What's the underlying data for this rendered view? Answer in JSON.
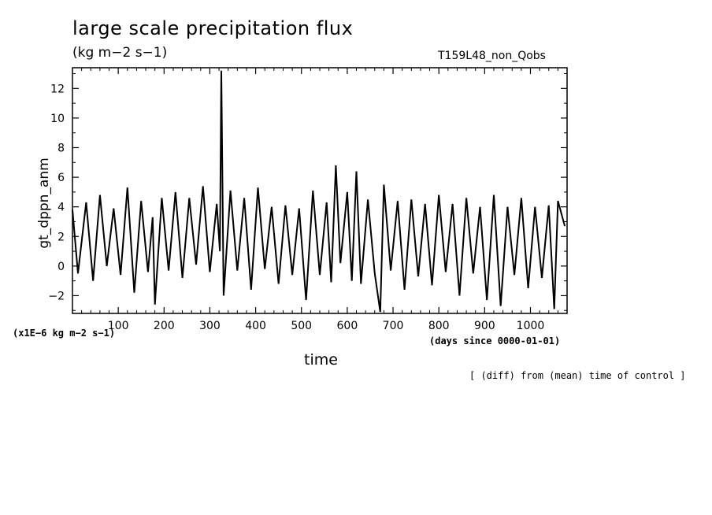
{
  "header": {
    "title": "large scale precipitation flux",
    "units": "(kg m−2 s−1)",
    "run": "T159L48_non_Qobs"
  },
  "axes": {
    "ylabel": "gt_dppn_anm",
    "xlabel": "time",
    "y_scale_note": "(x1E−6 kg m−2 s−1)",
    "x_units": "(days since 0000-01-01)"
  },
  "footer": {
    "note": "[ (diff) from (mean) time of control ]"
  },
  "chart_data": {
    "type": "line",
    "xlim": [
      0,
      1080
    ],
    "ylim": [
      -3.2,
      13.4
    ],
    "xticks": [
      100,
      200,
      300,
      400,
      500,
      600,
      700,
      800,
      900,
      1000
    ],
    "xtick_labels": [
      "100",
      "200",
      "300",
      "400",
      "500",
      "600",
      "700",
      "800",
      "900",
      "1000"
    ],
    "yticks": [
      -2,
      0,
      2,
      4,
      6,
      8,
      10,
      12
    ],
    "ytick_labels": [
      "−2",
      "0",
      "2",
      "4",
      "6",
      "8",
      "10",
      "12"
    ],
    "line_color": "#000000",
    "grid": false,
    "series": [
      {
        "x": [
          0,
          12,
          30,
          45,
          60,
          75,
          90,
          105,
          120,
          135,
          150,
          165,
          175,
          180,
          195,
          210,
          225,
          240,
          255,
          270,
          285,
          300,
          315,
          322,
          325,
          330,
          345,
          360,
          375,
          390,
          405,
          420,
          435,
          450,
          465,
          480,
          495,
          510,
          525,
          540,
          555,
          565,
          575,
          585,
          600,
          610,
          620,
          630,
          645,
          660,
          672,
          680,
          695,
          710,
          725,
          740,
          755,
          770,
          785,
          800,
          815,
          830,
          845,
          860,
          875,
          890,
          905,
          920,
          935,
          950,
          965,
          980,
          995,
          1010,
          1025,
          1040,
          1052,
          1060,
          1075
        ],
        "y": [
          3.8,
          -0.5,
          4.3,
          -1.0,
          4.8,
          0.0,
          3.9,
          -0.6,
          5.3,
          -1.8,
          4.4,
          -0.4,
          3.3,
          -2.6,
          4.6,
          -0.3,
          5.0,
          -0.8,
          4.6,
          0.1,
          5.4,
          -0.4,
          4.2,
          1.0,
          13.2,
          -2.0,
          5.1,
          -0.3,
          4.6,
          -1.6,
          5.3,
          -0.2,
          4.0,
          -1.2,
          4.1,
          -0.6,
          3.9,
          -2.3,
          5.1,
          -0.6,
          4.3,
          -1.1,
          6.8,
          0.2,
          5.0,
          -1.0,
          6.4,
          -1.2,
          4.5,
          -0.5,
          -3.1,
          5.5,
          -0.3,
          4.4,
          -1.6,
          4.5,
          -0.7,
          4.2,
          -1.3,
          4.8,
          -0.4,
          4.2,
          -2.0,
          4.6,
          -0.5,
          4.0,
          -2.3,
          4.8,
          -2.7,
          4.0,
          -0.6,
          4.6,
          -1.5,
          4.0,
          -0.8,
          4.1,
          -2.9,
          4.4,
          2.7
        ]
      }
    ]
  }
}
